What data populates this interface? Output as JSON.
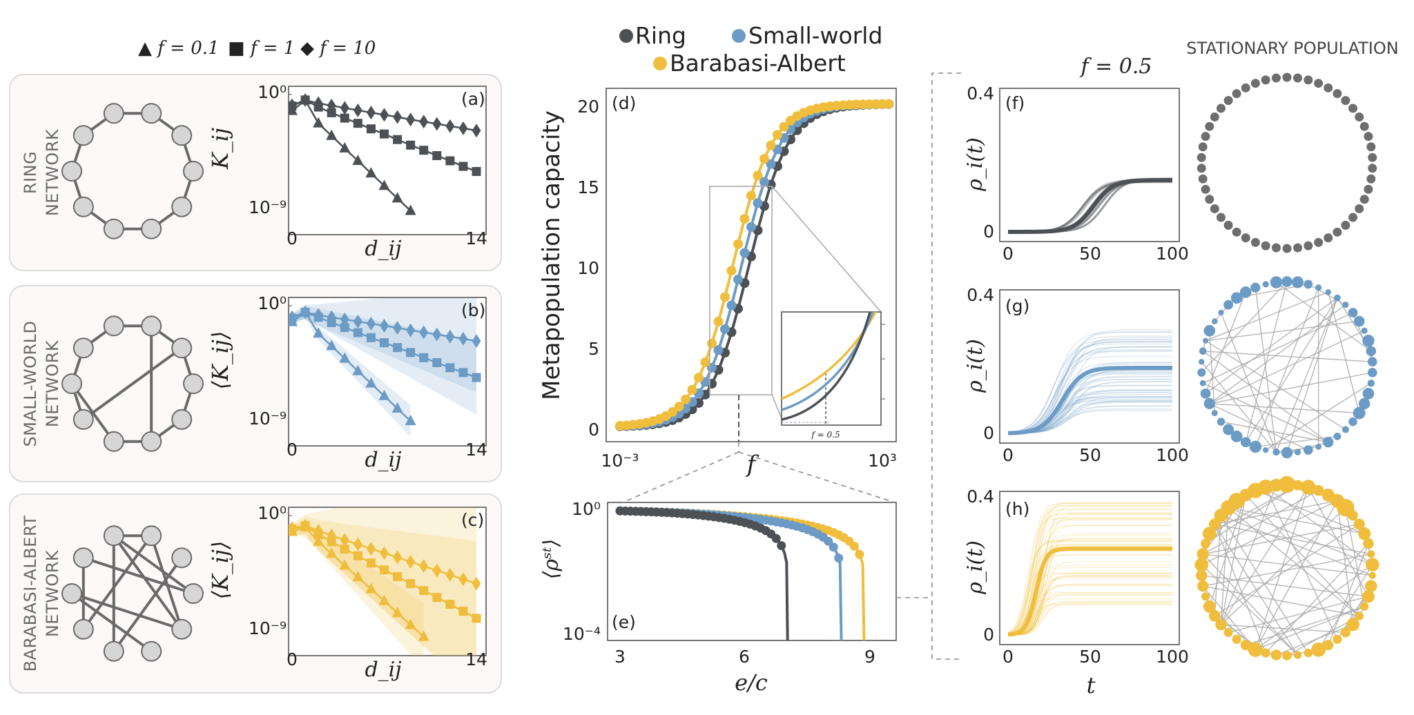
{
  "colors": {
    "ring": "#4d5156",
    "small_world": "#6c9bc5",
    "barabasi_albert": "#f0be3c",
    "node": "#d6d6d6",
    "grey_dot": "#6e6e6e"
  },
  "marker_legend": {
    "triangle": "▲ f = 0.1",
    "square": "■ f = 1",
    "diamond": "◆ f = 10"
  },
  "network_legend": {
    "ring": "Ring",
    "small_world": "Small-world",
    "barabasi_albert": "Barabasi-Albert"
  },
  "networks": [
    {
      "label_line1": "RING",
      "label_line2": "NETWORK",
      "panel": "(a)",
      "ylabel": "K_ij"
    },
    {
      "label_line1": "SMALL-WORLD",
      "label_line2": "NETWORK",
      "panel": "(b)",
      "ylabel": "⟨K_ij⟩"
    },
    {
      "label_line1": "BARABASI-ALBERT",
      "label_line2": "NETWORK",
      "panel": "(c)",
      "ylabel": "⟨K_ij⟩"
    }
  ],
  "kernel_axes": {
    "xlabel": "d_ij",
    "xticks": [
      "0",
      "14"
    ],
    "ytick_top": "10⁰",
    "ytick_bottom": "10⁻⁹"
  },
  "capacity_axes": {
    "panel": "(d)",
    "ylabel": "Metapopulation capacity",
    "xlabel": "f",
    "yticks": [
      "0",
      "5",
      "10",
      "15",
      "20"
    ],
    "xticks": [
      "10⁻³",
      "10³"
    ],
    "inset_label": "f = 0.5"
  },
  "rho_axes": {
    "panel": "(e)",
    "ylabel": "⟨ρˢᵗ⟩",
    "xlabel": "e/c",
    "xticks": [
      "3",
      "6",
      "9"
    ],
    "ytick_top": "10⁰",
    "ytick_bottom": "10⁻⁴"
  },
  "time_axes": {
    "title": "f = 0.5",
    "ylabel": "ρ_i(t)",
    "xlabel": "t",
    "yticks": [
      "0",
      "0.4"
    ],
    "xticks": [
      "0",
      "50",
      "100"
    ],
    "panels": [
      "(f)",
      "(g)",
      "(h)"
    ]
  },
  "stationary_title": "STATIONARY POPULATION",
  "chart_data": [
    {
      "type": "line",
      "title": "",
      "xlabel": "d_ij",
      "ylabel": "K_ij",
      "yscale": "log",
      "ylim": [
        1e-09,
        1
      ],
      "series": [
        {
          "name": "f = 0.1",
          "x": [
            0,
            1,
            2,
            3,
            4,
            5,
            6,
            7,
            8,
            9
          ],
          "values": [
            0.05,
            0.35,
            0.005,
            0.0005,
            5e-05,
            5e-06,
            5e-07,
            5e-08,
            5e-09,
            5e-10
          ]
        },
        {
          "name": "f = 1",
          "x": [
            0,
            1,
            2,
            3,
            4,
            5,
            6,
            7,
            8,
            9,
            10,
            11,
            12,
            13,
            14
          ],
          "values": [
            0.12,
            0.37,
            0.1,
            0.035,
            0.013,
            0.005,
            0.0018,
            0.0007,
            0.00025,
            9e-05,
            3.5e-05,
            1.3e-05,
            5e-06,
            1.8e-06,
            7e-07
          ]
        },
        {
          "name": "f = 10",
          "x": [
            0,
            1,
            2,
            3,
            4,
            5,
            6,
            7,
            8,
            9,
            10,
            11,
            12,
            13,
            14
          ],
          "values": [
            0.14,
            0.36,
            0.2,
            0.13,
            0.085,
            0.055,
            0.036,
            0.024,
            0.016,
            0.01,
            0.0068,
            0.0045,
            0.003,
            0.002,
            0.0013
          ]
        }
      ]
    },
    {
      "type": "line",
      "title": "",
      "xlabel": "d_ij",
      "ylabel": "⟨K_ij⟩",
      "yscale": "log",
      "ylim": [
        1e-09,
        1
      ],
      "series": [
        {
          "name": "f = 0.1",
          "x": [
            0,
            1,
            2,
            3,
            4,
            5,
            6,
            7,
            8,
            9
          ],
          "values": [
            0.05,
            0.3,
            0.006,
            0.0006,
            6e-05,
            6e-06,
            6e-07,
            6e-08,
            6e-09,
            6e-10
          ]
        },
        {
          "name": "f = 1",
          "x": [
            0,
            1,
            2,
            3,
            4,
            5,
            6,
            7,
            8,
            9,
            10,
            11,
            12,
            13,
            14
          ],
          "values": [
            0.1,
            0.3,
            0.12,
            0.045,
            0.018,
            0.007,
            0.0028,
            0.0011,
            0.00045,
            0.00018,
            7e-05,
            2.8e-05,
            1.1e-05,
            4.5e-06,
            1.8e-06
          ]
        },
        {
          "name": "f = 10",
          "x": [
            0,
            1,
            2,
            3,
            4,
            5,
            6,
            7,
            8,
            9,
            10,
            11,
            12,
            13,
            14
          ],
          "values": [
            0.12,
            0.3,
            0.18,
            0.12,
            0.08,
            0.055,
            0.037,
            0.025,
            0.017,
            0.011,
            0.0075,
            0.005,
            0.0034,
            0.0023,
            0.0015
          ]
        }
      ]
    },
    {
      "type": "line",
      "title": "",
      "xlabel": "d_ij",
      "ylabel": "⟨K_ij⟩",
      "yscale": "log",
      "ylim": [
        1e-09,
        1
      ],
      "series": [
        {
          "name": "f = 0.1",
          "x": [
            0,
            1,
            2,
            3,
            4,
            5,
            6,
            7,
            8,
            9,
            10
          ],
          "values": [
            0.05,
            0.12,
            0.008,
            0.0009,
            0.0001,
            1.2e-05,
            1.3e-06,
            1.5e-07,
            1.6e-08,
            1.8e-09,
            2e-10
          ]
        },
        {
          "name": "f = 1",
          "x": [
            0,
            1,
            2,
            3,
            4,
            5,
            6,
            7,
            8,
            9,
            10,
            11,
            12,
            13,
            14
          ],
          "values": [
            0.08,
            0.15,
            0.03,
            0.008,
            0.0021,
            0.0006,
            0.00016,
            4.5e-05,
            1.3e-05,
            3.6e-06,
            1e-06,
            2.8e-07,
            8e-08,
            2.2e-08,
            6e-09
          ]
        },
        {
          "name": "f = 10",
          "x": [
            0,
            1,
            2,
            3,
            4,
            5,
            6,
            7,
            8,
            9,
            10,
            11,
            12,
            13,
            14
          ],
          "values": [
            0.1,
            0.15,
            0.06,
            0.025,
            0.011,
            0.005,
            0.0022,
            0.001,
            0.00045,
            0.0002,
            9e-05,
            4e-05,
            1.8e-05,
            8e-06,
            3.6e-06
          ]
        }
      ]
    },
    {
      "type": "scatter",
      "title": "",
      "xlabel": "f",
      "ylabel": "Metapopulation capacity",
      "xscale": "log",
      "xlim": [
        0.0005,
        1500
      ],
      "ylim": [
        -0.8,
        21
      ],
      "sigmoid_centers_log10f": {
        "Ring": -0.05,
        "Small-world": -0.22,
        "Barabasi-Albert": -0.42
      },
      "series_names": [
        "Ring",
        "Small-world",
        "Barabasi-Albert"
      ],
      "max_capacity": 20
    },
    {
      "type": "scatter",
      "title": "",
      "xlabel": "e/c",
      "ylabel": "⟨ρst⟩",
      "yscale": "log",
      "ylim": [
        0.0001,
        1
      ],
      "xlim": [
        2.8,
        9.8
      ],
      "series": [
        {
          "name": "Ring",
          "endpoint_ec": 7.05
        },
        {
          "name": "Small-world",
          "endpoint_ec": 8.35
        },
        {
          "name": "Barabasi-Albert",
          "endpoint_ec": 8.9
        }
      ]
    },
    {
      "type": "line",
      "title": "f = 0.5",
      "xlabel": "t",
      "ylabel": "ρ_i(t)",
      "xlim": [
        0,
        100
      ],
      "ylim": [
        0,
        0.4
      ],
      "series": [
        {
          "name": "Ring",
          "steady": 0.15,
          "midpoint": 52
        },
        {
          "name": "Small-world",
          "steady": 0.19,
          "midpoint": 33
        },
        {
          "name": "Barabasi-Albert",
          "steady": 0.25,
          "midpoint": 17
        }
      ]
    }
  ]
}
